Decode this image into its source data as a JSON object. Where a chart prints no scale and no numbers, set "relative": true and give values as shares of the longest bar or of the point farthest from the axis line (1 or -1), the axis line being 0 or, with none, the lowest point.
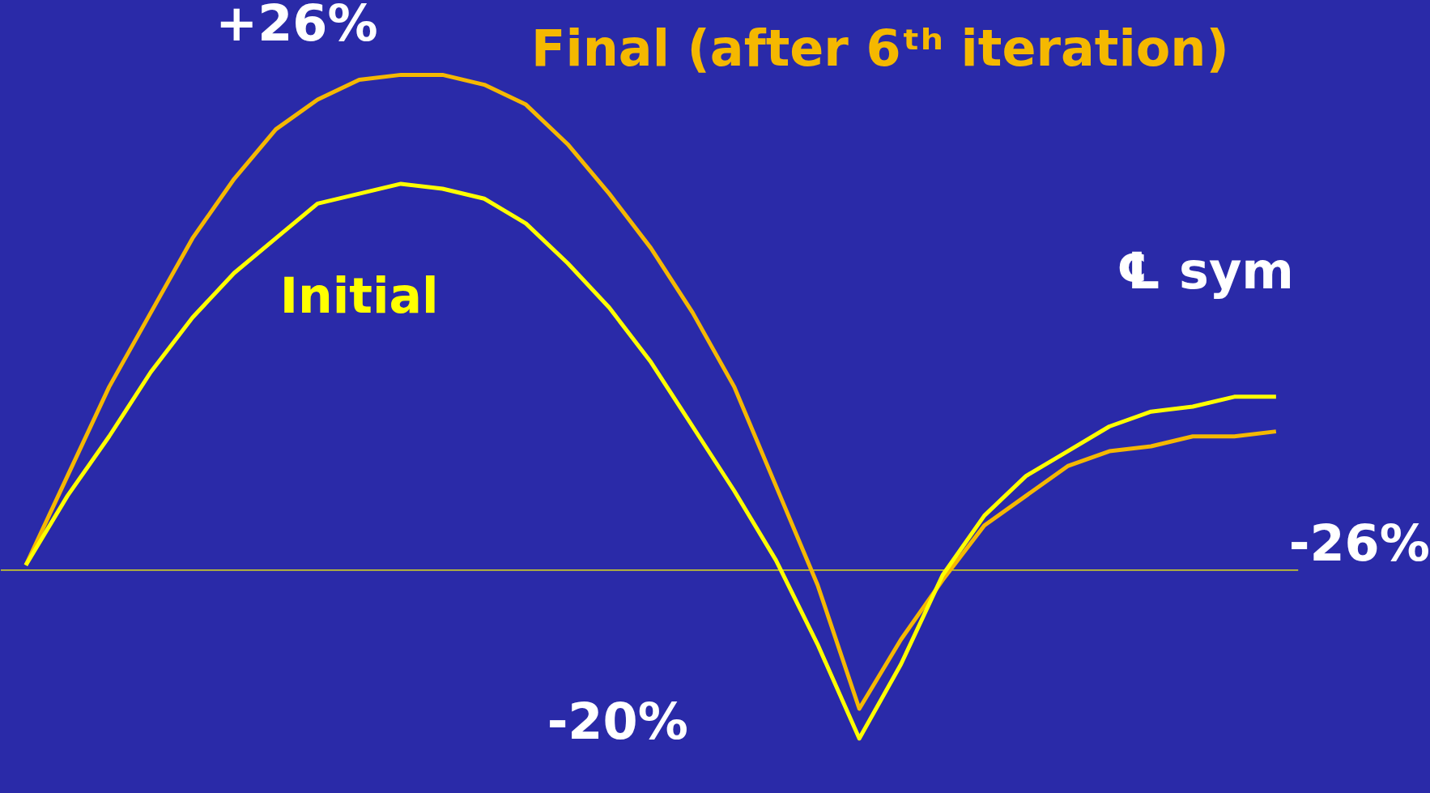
{
  "chart_data": {
    "type": "line",
    "relative": true,
    "marker": "none",
    "line_style": "solid",
    "ref_lines": [
      {
        "axis": "y",
        "value": 0,
        "color": "#ffff00"
      }
    ],
    "categories": [
      null,
      null,
      null,
      null,
      null,
      null,
      null,
      null,
      null,
      null,
      null,
      null,
      null,
      null,
      null,
      null,
      null,
      null,
      null,
      null,
      null,
      null,
      null,
      null,
      null,
      null,
      null,
      null,
      null,
      null,
      null
    ],
    "series": [
      {
        "name": "Final (after 6ᵗʰ iteration)",
        "color": "#f5b800",
        "values": [
          0.01,
          0.19,
          0.37,
          0.52,
          0.67,
          0.79,
          0.89,
          0.95,
          0.99,
          1.0,
          1.0,
          0.98,
          0.94,
          0.86,
          0.76,
          0.65,
          0.52,
          0.37,
          0.17,
          -0.03,
          -0.28,
          -0.14,
          -0.02,
          0.09,
          0.15,
          0.21,
          0.24,
          0.25,
          0.27,
          0.27,
          0.28
        ]
      },
      {
        "name": "Initial",
        "color": "#ffff00",
        "values": [
          0.01,
          0.15,
          0.27,
          0.4,
          0.51,
          0.6,
          0.67,
          0.74,
          0.76,
          0.78,
          0.77,
          0.75,
          0.7,
          0.62,
          0.53,
          0.42,
          0.29,
          0.16,
          0.02,
          -0.15,
          -0.34,
          -0.19,
          -0.01,
          0.11,
          0.19,
          0.24,
          0.29,
          0.32,
          0.33,
          0.35,
          0.35
        ]
      }
    ],
    "annotations": [
      "+26%",
      "℄ sym",
      "-26%",
      "-20%"
    ]
  }
}
